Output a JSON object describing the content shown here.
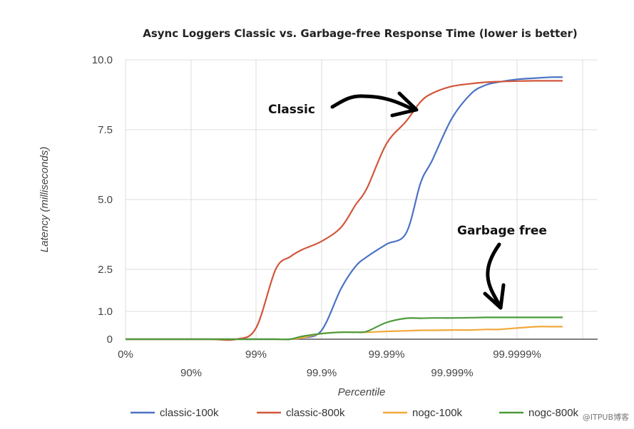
{
  "chart_data": {
    "type": "line",
    "title": "Async Loggers Classic vs. Garbage-free Response Time (lower is better)",
    "xlabel": "Percentile",
    "ylabel": "Latency (milliseconds)",
    "x_tick_labels_upper": [
      "0%",
      "99%",
      "99.99%",
      "99.9999%"
    ],
    "x_tick_labels_lower": [
      "90%",
      "99.9%",
      "99.999%"
    ],
    "y_tick_labels": [
      "0",
      "1.0",
      "2.5",
      "5.0",
      "7.5",
      "10.0"
    ],
    "x_scale": "percentile (log of 1/(1-p))",
    "x": [
      "0%",
      "50%",
      "80%",
      "90%",
      "95%",
      "98%",
      "99%",
      "99.5%",
      "99.7%",
      "99.8%",
      "99.9%",
      "99.95%",
      "99.97%",
      "99.98%",
      "99.99%",
      "99.995%",
      "99.997%",
      "99.998%",
      "99.999%",
      "99.9995%",
      "99.9997%",
      "99.9998%",
      "99.9999%",
      "99.99995%",
      "99.99997%",
      "99.99998%"
    ],
    "series": [
      {
        "name": "classic-100k",
        "color": "#4a73c4",
        "values": [
          0,
          0,
          0,
          0,
          0,
          0,
          0,
          0,
          0,
          0.05,
          0.3,
          1.8,
          2.6,
          2.95,
          3.4,
          3.8,
          5.6,
          6.4,
          7.9,
          8.8,
          9.1,
          9.2,
          9.3,
          9.35,
          9.38,
          9.38
        ]
      },
      {
        "name": "classic-800k",
        "color": "#d1573b",
        "values": [
          0,
          0,
          0,
          0,
          0,
          0,
          0.4,
          2.5,
          2.95,
          3.2,
          3.5,
          4.0,
          4.8,
          5.4,
          7.0,
          7.8,
          8.5,
          8.8,
          9.05,
          9.15,
          9.2,
          9.22,
          9.24,
          9.25,
          9.25,
          9.25
        ]
      },
      {
        "name": "nogc-100k",
        "color": "#f2a83b",
        "values": [
          0,
          0,
          0,
          0,
          0,
          0,
          0,
          0,
          0,
          0.05,
          0.2,
          0.25,
          0.25,
          0.25,
          0.28,
          0.3,
          0.32,
          0.32,
          0.33,
          0.33,
          0.35,
          0.35,
          0.4,
          0.45,
          0.45,
          0.45
        ]
      },
      {
        "name": "nogc-800k",
        "color": "#4c9a3c",
        "values": [
          0,
          0,
          0,
          0,
          0,
          0,
          0,
          0,
          0,
          0.1,
          0.2,
          0.25,
          0.25,
          0.28,
          0.6,
          0.75,
          0.75,
          0.76,
          0.76,
          0.77,
          0.78,
          0.78,
          0.78,
          0.78,
          0.78,
          0.78
        ]
      }
    ],
    "ylim": [
      0,
      10
    ],
    "grid": true,
    "legend": "bottom",
    "annotations": [
      "Classic",
      "Garbage free"
    ]
  },
  "watermark": "@ITPUB博客"
}
